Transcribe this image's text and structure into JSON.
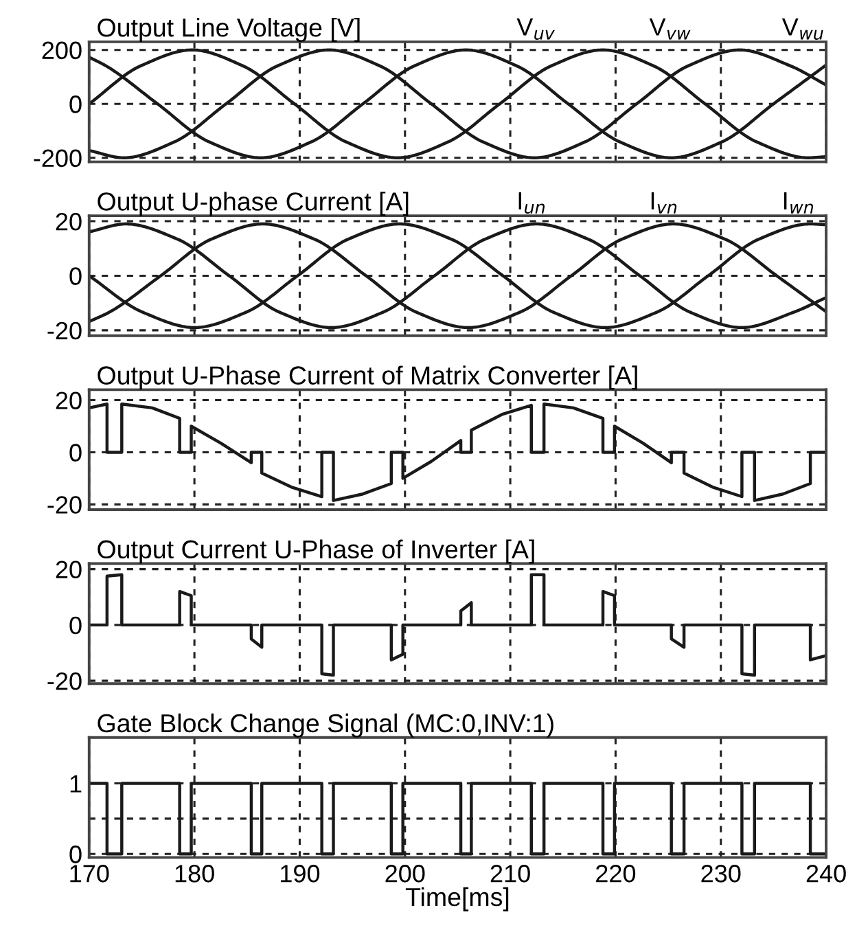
{
  "chart_data": [
    {
      "type": "line",
      "title": "Output Line Voltage [V]",
      "xlim": [
        170,
        240
      ],
      "xticks": [
        170,
        180,
        190,
        200,
        210,
        220,
        230,
        240
      ],
      "ylim": [
        -215,
        230
      ],
      "yticks": [
        -200,
        0,
        200
      ],
      "grid": true,
      "tick_labels": "y",
      "series": [
        {
          "name": "V$_{uv}$",
          "color": "#1a1a1a",
          "x": [
            170,
            171.6,
            176.5,
            181.4,
            186.3,
            191.1,
            196,
            200.9,
            205.8,
            210.6,
            215.5,
            220.4,
            225.3,
            230.1,
            235,
            240
          ],
          "values": [
            173,
            141,
            0,
            -141,
            -200,
            -141,
            0,
            141,
            200,
            141,
            0,
            -141,
            -200,
            -141,
            0,
            144
          ]
        },
        {
          "name": "V$_{vw}$",
          "color": "#1a1a1a",
          "x": [
            170,
            174.9,
            179.8,
            184.6,
            189.5,
            194.4,
            199.3,
            204.1,
            209,
            213.9,
            218.8,
            223.6,
            228.5,
            233.4,
            238.3,
            240
          ],
          "values": [
            0,
            141,
            200,
            141,
            0,
            -141,
            -200,
            -141,
            0,
            141,
            200,
            141,
            0,
            -141,
            -200,
            -196
          ]
        },
        {
          "name": "V$_{wu}$",
          "color": "#1a1a1a",
          "x": [
            170,
            173.3,
            178.1,
            183,
            187.9,
            192.8,
            197.6,
            202.5,
            207.4,
            212.3,
            217.1,
            222,
            226.9,
            231.8,
            236.6,
            240
          ],
          "values": [
            -173,
            -200,
            -141,
            0,
            141,
            200,
            141,
            0,
            -141,
            -200,
            -141,
            0,
            141,
            200,
            141,
            70
          ]
        }
      ]
    },
    {
      "type": "line",
      "title": "Output U-phase Current [A]",
      "xlim": [
        170,
        240
      ],
      "xticks": [
        170,
        180,
        190,
        200,
        210,
        220,
        230,
        240
      ],
      "ylim": [
        -22,
        22
      ],
      "yticks": [
        -20,
        0,
        20
      ],
      "grid": true,
      "tick_labels": "y",
      "series": [
        {
          "name": "I$_{un}$",
          "color": "#1a1a1a",
          "x": [
            170,
            173.5,
            178.4,
            183.3,
            188.1,
            193,
            197.9,
            202.8,
            207.6,
            212.5,
            217.4,
            222.3,
            227.1,
            232,
            236.9,
            240
          ],
          "values": [
            16.1,
            19,
            13.4,
            0,
            -13.4,
            -19,
            -13.4,
            0,
            13.4,
            19,
            13.4,
            0,
            -13.4,
            -19,
            -13.4,
            -8
          ]
        },
        {
          "name": "I$_{vn}$",
          "color": "#1a1a1a",
          "x": [
            170,
            171.9,
            176.8,
            181.6,
            186.5,
            191.4,
            196.3,
            201.1,
            206,
            210.9,
            215.8,
            220.6,
            225.5,
            230.4,
            235.3,
            240
          ],
          "values": [
            -16.8,
            -13.4,
            0,
            13.4,
            19,
            13.4,
            0,
            -13.4,
            -19,
            -13.4,
            0,
            13.4,
            19,
            13.4,
            0,
            -13.2
          ]
        },
        {
          "name": "I$_{wn}$",
          "color": "#1a1a1a",
          "x": [
            170,
            175.1,
            180,
            184.9,
            189.8,
            194.6,
            199.5,
            204.4,
            209.3,
            214.1,
            219,
            223.9,
            228.8,
            233.6,
            238.5,
            240
          ],
          "values": [
            0,
            -13.4,
            -19,
            -13.4,
            0,
            13.4,
            19,
            13.4,
            0,
            -13.4,
            -19,
            -13.4,
            0,
            13.4,
            19,
            18.7
          ]
        }
      ]
    },
    {
      "type": "line",
      "title": "Output U-Phase Current of Matrix Converter [A]",
      "xlim": [
        170,
        240
      ],
      "xticks": [
        170,
        180,
        190,
        200,
        210,
        220,
        230,
        240
      ],
      "ylim": [
        -22,
        24
      ],
      "yticks": [
        -20,
        0,
        20
      ],
      "grid": true,
      "tick_labels": "y",
      "series": [
        {
          "color": "#1a1a1a",
          "x": [
            170,
            171.7,
            171.7,
            173.1,
            173.1,
            176,
            178.6,
            178.6,
            179.7,
            179.7,
            182.5,
            185.4,
            185.4,
            186.4,
            186.4,
            189.3,
            192.1,
            192.1,
            193.2,
            193.2,
            196,
            198.7,
            198.7,
            199.8,
            199.8,
            202.5,
            205.3,
            205.3,
            206.3,
            206.3,
            209.2,
            212,
            212,
            213.2,
            213.2,
            216,
            218.8,
            218.8,
            219.9,
            219.9,
            222.6,
            225.3,
            225.3,
            226.5,
            226.5,
            229.3,
            232,
            232,
            233.2,
            233.2,
            235.9,
            238.5,
            238.5,
            240
          ],
          "values": [
            17,
            18.5,
            0,
            0,
            18.5,
            17,
            13,
            0,
            0,
            10,
            3.5,
            -4,
            0,
            0,
            -8,
            -13.5,
            -17,
            0,
            0,
            -18.5,
            -16,
            -12,
            0,
            0,
            -10,
            -3.5,
            4.5,
            0,
            0,
            8.5,
            14.5,
            18,
            0,
            0,
            18.5,
            17,
            13,
            0,
            0,
            10,
            3.5,
            -4,
            0,
            0,
            -8,
            -13.5,
            -17,
            0,
            0,
            -18.5,
            -16,
            -12,
            0,
            0
          ]
        }
      ]
    },
    {
      "type": "line",
      "title": "Output Current U-Phase of Inverter [A]",
      "xlim": [
        170,
        240
      ],
      "xticks": [
        170,
        180,
        190,
        200,
        210,
        220,
        230,
        240
      ],
      "ylim": [
        -21,
        22
      ],
      "yticks": [
        -20,
        0,
        20
      ],
      "grid": true,
      "tick_labels": "y",
      "series": [
        {
          "color": "#1a1a1a",
          "x": [
            170,
            171.7,
            171.7,
            173.1,
            173.1,
            178.6,
            178.6,
            179.7,
            179.7,
            185.4,
            185.4,
            186.4,
            186.4,
            192.1,
            192.1,
            193.2,
            193.2,
            198.7,
            198.7,
            199.8,
            199.8,
            205.3,
            205.3,
            206.3,
            206.3,
            212,
            212,
            213.2,
            213.2,
            218.8,
            218.8,
            219.9,
            219.9,
            225.3,
            225.3,
            226.5,
            226.5,
            232,
            232,
            233.2,
            233.2,
            238.5,
            238.5,
            240
          ],
          "values": [
            0,
            0,
            17.5,
            18,
            0,
            0,
            12,
            10.5,
            0,
            0,
            -5,
            -8,
            0,
            0,
            -17.5,
            -18,
            0,
            0,
            -12.5,
            -10.5,
            0,
            0,
            5,
            8,
            0,
            0,
            18,
            18,
            0,
            0,
            12,
            10.5,
            0,
            0,
            -5,
            -8,
            0,
            0,
            -17.5,
            -18,
            0,
            0,
            -12.5,
            -11
          ]
        }
      ]
    },
    {
      "type": "step",
      "title": "Gate Block Change Signal (MC:0,INV:1)",
      "xlabel": "Time[ms]",
      "xlim": [
        170,
        240
      ],
      "xticks": [
        170,
        180,
        190,
        200,
        210,
        220,
        230,
        240
      ],
      "ylim": [
        -0.05,
        1.65
      ],
      "yticks": [
        0,
        {
          "value": 0.5,
          "label": null
        },
        1
      ],
      "grid": true,
      "series": [
        {
          "color": "#1a1a1a",
          "x": [
            170,
            171.7,
            173.1,
            178.6,
            179.7,
            185.4,
            186.4,
            192.1,
            193.2,
            198.7,
            199.8,
            205.3,
            206.3,
            212.0,
            213.2,
            218.8,
            219.9,
            225.3,
            226.5,
            232.0,
            233.2,
            238.5,
            240
          ],
          "values": [
            1,
            0,
            1,
            0,
            1,
            0,
            1,
            0,
            1,
            0,
            1,
            0,
            1,
            0,
            1,
            0,
            1,
            0,
            1,
            0,
            1,
            0,
            0
          ]
        }
      ]
    }
  ]
}
